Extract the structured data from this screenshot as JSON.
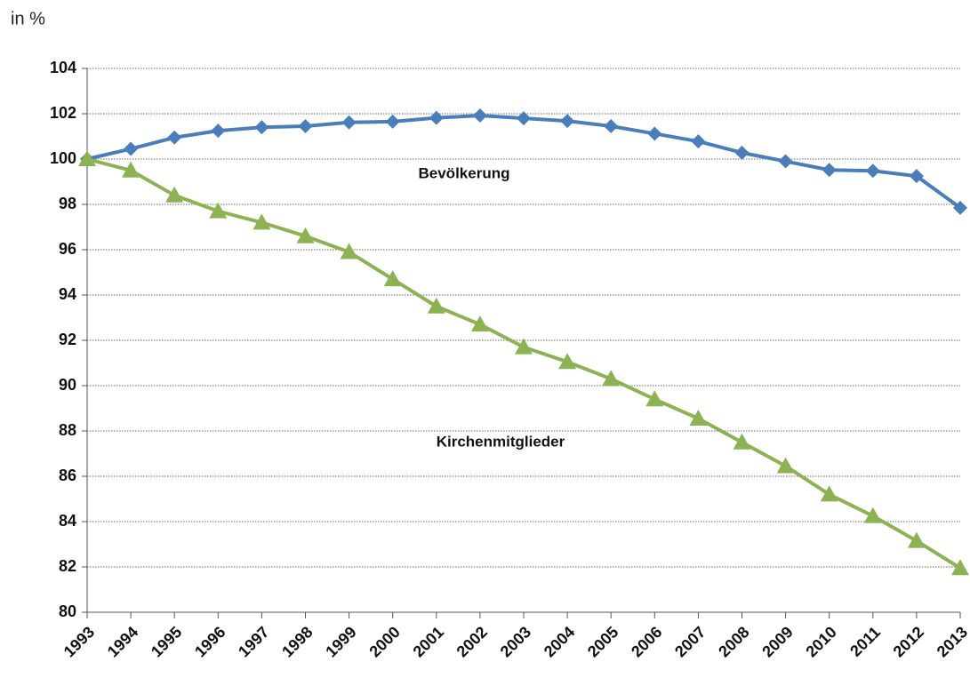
{
  "chart_data": {
    "type": "line",
    "y_label": "in %",
    "categories": [
      "1993",
      "1994",
      "1995",
      "1996",
      "1997",
      "1998",
      "1999",
      "2000",
      "2001",
      "2002",
      "2003",
      "2004",
      "2005",
      "2006",
      "2007",
      "2008",
      "2009",
      "2010",
      "2011",
      "2012",
      "2013"
    ],
    "series": [
      {
        "name": "Bevölkerung",
        "color": "#4a7ebb",
        "marker": "diamond",
        "values": [
          100,
          100.45,
          100.95,
          101.25,
          101.4,
          101.45,
          101.62,
          101.65,
          101.82,
          101.92,
          101.8,
          101.68,
          101.45,
          101.12,
          100.78,
          100.28,
          99.9,
          99.52,
          99.48,
          99.25,
          97.85
        ]
      },
      {
        "name": "Kirchenmitglieder",
        "color": "#8db254",
        "marker": "triangle",
        "values": [
          100,
          99.5,
          98.4,
          97.7,
          97.2,
          96.6,
          95.9,
          94.7,
          93.5,
          92.7,
          91.7,
          91.05,
          90.3,
          89.4,
          88.55,
          87.5,
          86.45,
          85.2,
          84.25,
          83.15,
          81.95
        ]
      }
    ],
    "ylim": [
      80,
      104
    ],
    "yticks": [
      80,
      82,
      84,
      86,
      88,
      90,
      92,
      94,
      96,
      98,
      100,
      102,
      104
    ],
    "grid": true
  }
}
